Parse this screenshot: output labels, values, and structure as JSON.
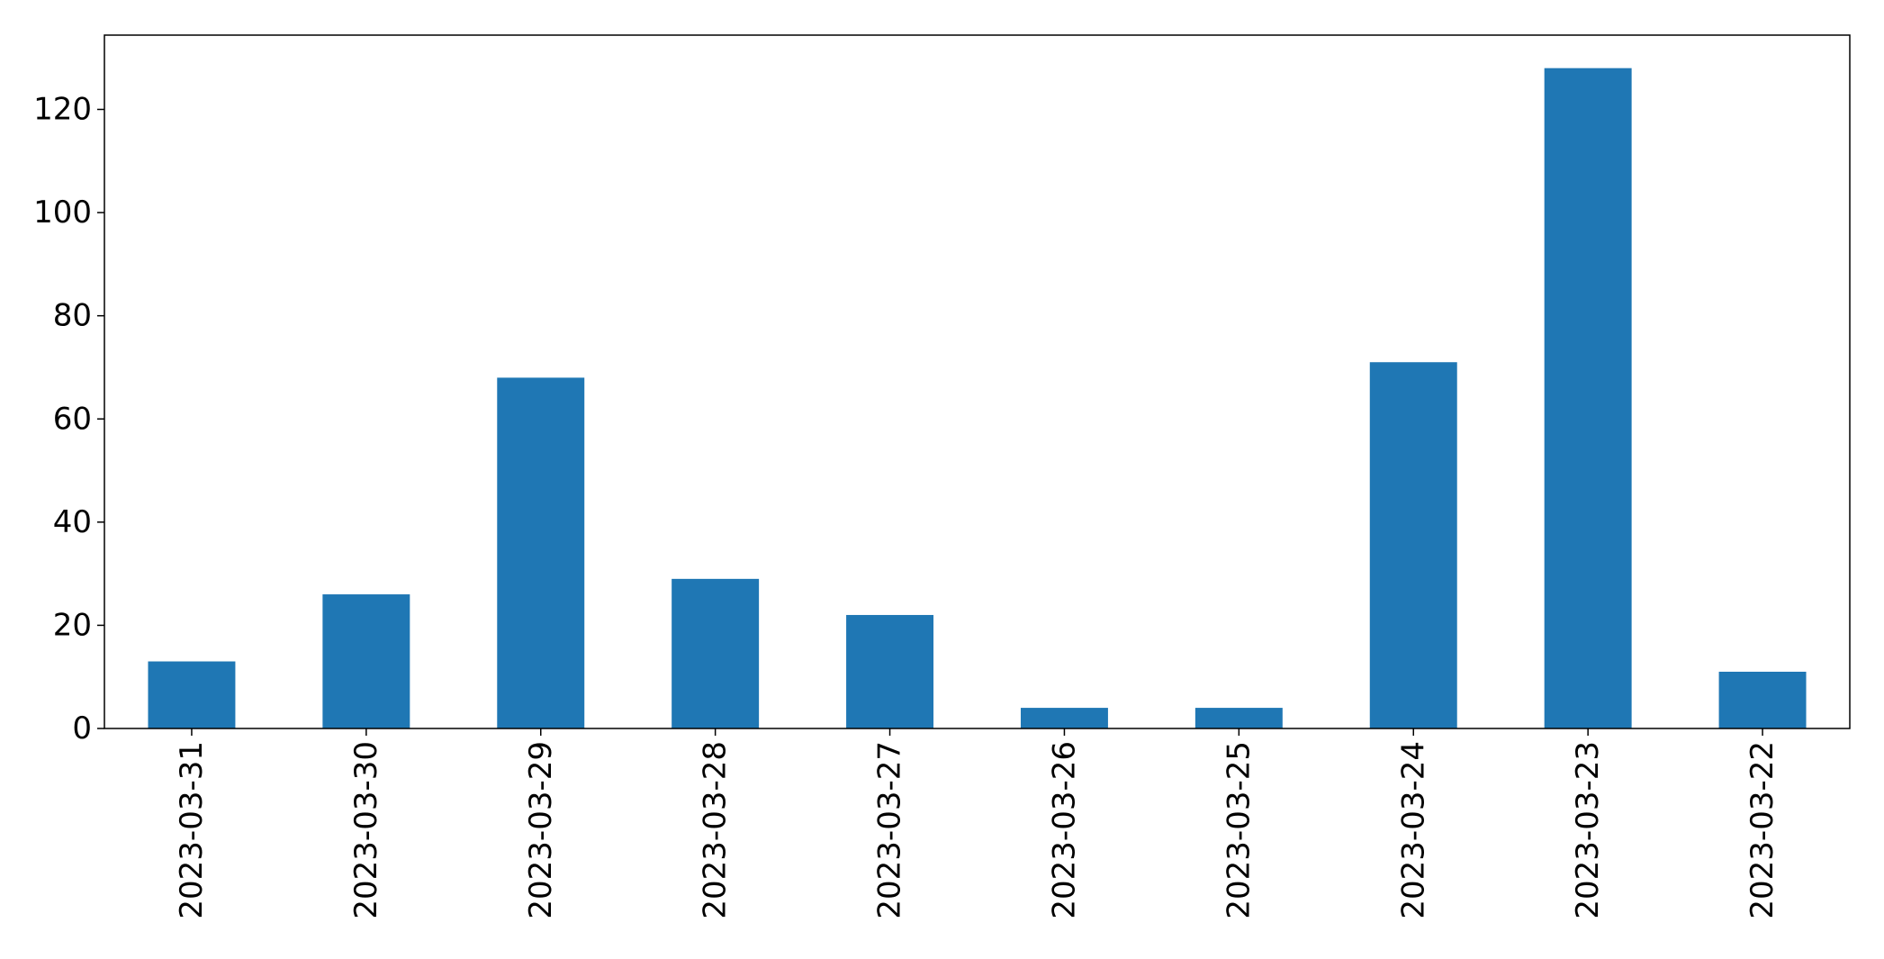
{
  "chart_data": {
    "type": "bar",
    "title": "",
    "xlabel": "",
    "ylabel": "",
    "categories": [
      "2023-03-31",
      "2023-03-30",
      "2023-03-29",
      "2023-03-28",
      "2023-03-27",
      "2023-03-26",
      "2023-03-25",
      "2023-03-24",
      "2023-03-23",
      "2023-03-22"
    ],
    "values": [
      13,
      26,
      68,
      29,
      22,
      4,
      4,
      71,
      128,
      11
    ],
    "ylim": [
      0,
      134.4
    ],
    "yticks": [
      0,
      20,
      40,
      60,
      80,
      100,
      120
    ],
    "grid": false,
    "legend": "none",
    "bar_color": "#1f77b4"
  }
}
